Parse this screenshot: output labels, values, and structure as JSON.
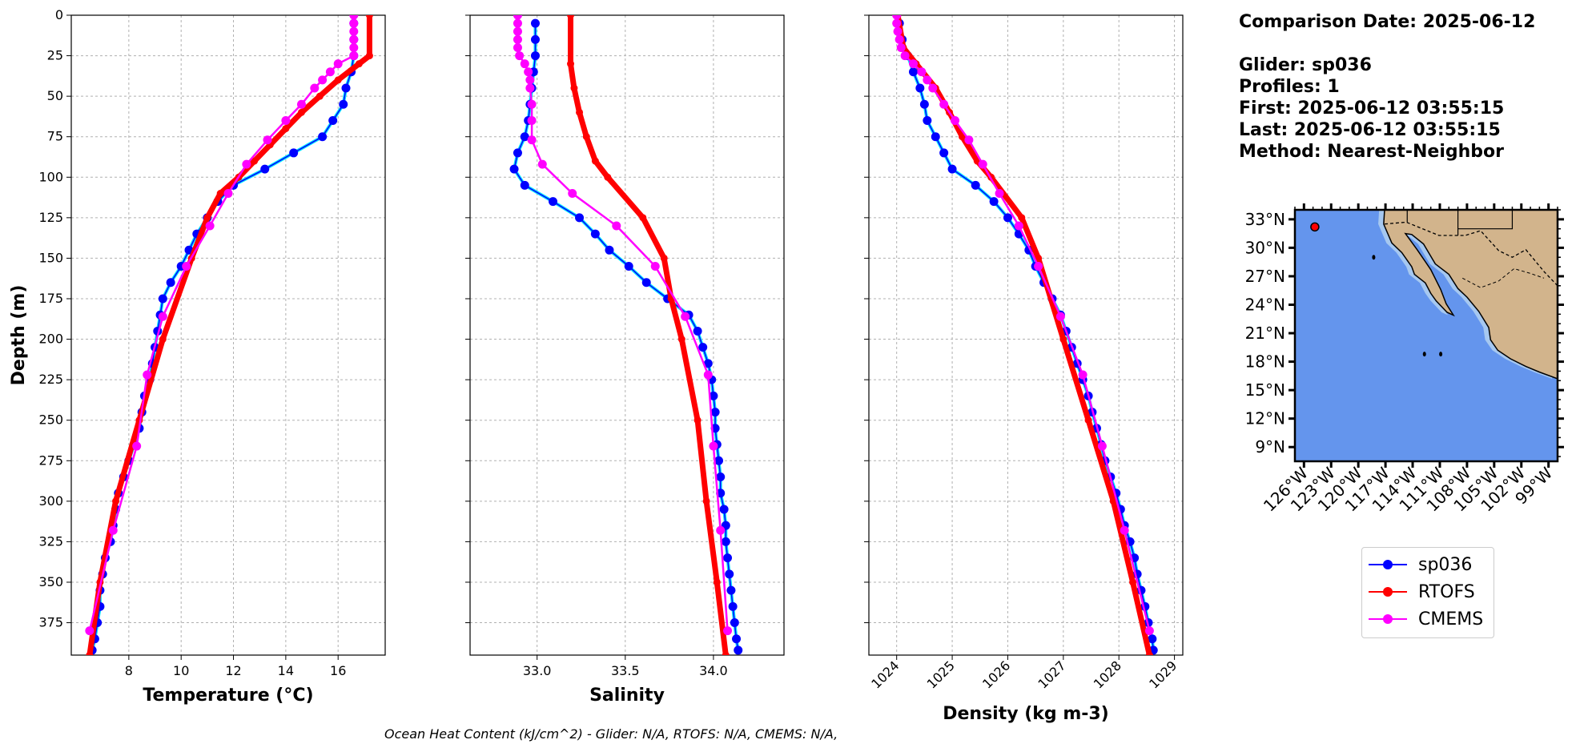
{
  "info": {
    "comparison_date": "Comparison Date: 2025-06-12",
    "glider": "Glider: sp036",
    "profiles": "Profiles: 1",
    "first": "First: 2025-06-12 03:55:15",
    "last": "Last: 2025-06-12 03:55:15",
    "method": "Method: Nearest-Neighbor"
  },
  "footer": "Ocean Heat Content (kJ/cm^2) - Glider: N/A,  RTOFS: N/A,  CMEMS: N/A,",
  "colors": {
    "glider": "#0000ff",
    "glider_line": "#00e5ff",
    "rtofs": "#ff0000",
    "cmems": "#ff00ff"
  },
  "legend": [
    {
      "label": "sp036",
      "color": "#0000ff"
    },
    {
      "label": "RTOFS",
      "color": "#ff0000"
    },
    {
      "label": "CMEMS",
      "color": "#ff00ff"
    }
  ],
  "chart_data": [
    {
      "type": "line",
      "xlabel": "Temperature (°C)",
      "ylabel": "Depth (m)",
      "xlim": [
        5.8,
        17.8
      ],
      "ylim": [
        395,
        0
      ],
      "xticks": [
        8,
        10,
        12,
        14,
        16
      ],
      "yticks": [
        0,
        25,
        50,
        75,
        100,
        125,
        150,
        175,
        200,
        225,
        250,
        275,
        300,
        325,
        350,
        375
      ],
      "grid": true,
      "series": [
        {
          "name": "sp036",
          "depth": [
            5,
            15,
            25,
            35,
            45,
            55,
            65,
            75,
            85,
            95,
            105,
            115,
            125,
            135,
            145,
            155,
            165,
            175,
            185,
            195,
            205,
            215,
            225,
            235,
            245,
            255,
            265,
            275,
            285,
            295,
            305,
            315,
            325,
            335,
            345,
            355,
            365,
            375,
            385,
            392
          ],
          "values": [
            16.6,
            16.6,
            16.6,
            16.5,
            16.3,
            16.2,
            15.8,
            15.4,
            14.3,
            13.2,
            12.0,
            11.4,
            11.0,
            10.6,
            10.3,
            10.0,
            9.6,
            9.3,
            9.2,
            9.1,
            9.0,
            8.9,
            8.8,
            8.6,
            8.5,
            8.4,
            8.2,
            8.0,
            7.8,
            7.6,
            7.5,
            7.4,
            7.3,
            7.1,
            7.0,
            6.9,
            6.9,
            6.8,
            6.7,
            6.6
          ]
        },
        {
          "name": "RTOFS",
          "depth": [
            0,
            25,
            30,
            40,
            50,
            60,
            70,
            80,
            90,
            100,
            110,
            125,
            150,
            200,
            250,
            300,
            350,
            395
          ],
          "values": [
            17.2,
            17.2,
            16.8,
            16.0,
            15.3,
            14.6,
            14.0,
            13.4,
            12.8,
            12.2,
            11.5,
            11.0,
            10.4,
            9.3,
            8.4,
            7.5,
            6.9,
            6.5
          ]
        },
        {
          "name": "CMEMS",
          "depth": [
            0,
            5,
            10,
            15,
            20,
            25,
            30,
            35,
            40,
            45,
            55,
            65,
            77,
            92,
            110,
            130,
            155,
            186,
            222,
            266,
            318,
            380
          ],
          "values": [
            16.6,
            16.6,
            16.6,
            16.6,
            16.6,
            16.6,
            16.0,
            15.7,
            15.4,
            15.1,
            14.6,
            14.0,
            13.3,
            12.5,
            11.8,
            11.1,
            10.2,
            9.3,
            8.7,
            8.3,
            7.4,
            6.5
          ]
        }
      ]
    },
    {
      "type": "line",
      "xlabel": "Salinity",
      "xlim": [
        32.62,
        34.4
      ],
      "ylim": [
        395,
        0
      ],
      "xticks": [
        33.0,
        33.5,
        34.0
      ],
      "xtick_labels": [
        "33.0",
        "33.5",
        "34.0"
      ],
      "grid": true,
      "series": [
        {
          "name": "sp036",
          "depth": [
            5,
            15,
            25,
            35,
            45,
            55,
            65,
            75,
            85,
            95,
            105,
            115,
            125,
            135,
            145,
            155,
            165,
            175,
            185,
            195,
            205,
            215,
            225,
            235,
            245,
            255,
            265,
            275,
            285,
            295,
            305,
            315,
            325,
            335,
            345,
            355,
            365,
            375,
            385,
            392
          ],
          "values": [
            32.99,
            32.99,
            32.99,
            32.98,
            32.97,
            32.96,
            32.95,
            32.93,
            32.89,
            32.87,
            32.93,
            33.09,
            33.24,
            33.33,
            33.41,
            33.52,
            33.62,
            33.74,
            33.86,
            33.91,
            33.94,
            33.97,
            33.99,
            34.0,
            34.01,
            34.01,
            34.02,
            34.03,
            34.04,
            34.04,
            34.06,
            34.07,
            34.07,
            34.08,
            34.09,
            34.1,
            34.11,
            34.12,
            34.13,
            34.14
          ]
        },
        {
          "name": "RTOFS",
          "depth": [
            0,
            30,
            45,
            60,
            75,
            90,
            100,
            125,
            150,
            175,
            200,
            250,
            300,
            350,
            395
          ],
          "values": [
            33.19,
            33.19,
            33.21,
            33.24,
            33.28,
            33.33,
            33.4,
            33.6,
            33.72,
            33.76,
            33.82,
            33.91,
            33.96,
            34.02,
            34.07
          ]
        },
        {
          "name": "CMEMS",
          "depth": [
            0,
            5,
            10,
            15,
            20,
            25,
            30,
            35,
            40,
            45,
            55,
            65,
            77,
            92,
            110,
            130,
            155,
            186,
            222,
            266,
            318,
            380
          ],
          "values": [
            32.89,
            32.89,
            32.89,
            32.89,
            32.89,
            32.9,
            32.93,
            32.95,
            32.96,
            32.96,
            32.97,
            32.97,
            32.97,
            33.03,
            33.2,
            33.45,
            33.67,
            33.84,
            33.97,
            34.0,
            34.04,
            34.08
          ]
        }
      ]
    },
    {
      "type": "line",
      "xlabel": "Density (kg m-3)",
      "xlim": [
        1023.5,
        1029.15
      ],
      "ylim": [
        395,
        0
      ],
      "xticks": [
        1024,
        1025,
        1026,
        1027,
        1028,
        1029
      ],
      "grid": true,
      "series": [
        {
          "name": "sp036",
          "depth": [
            5,
            15,
            25,
            35,
            45,
            55,
            65,
            75,
            85,
            95,
            105,
            115,
            125,
            135,
            145,
            155,
            165,
            175,
            185,
            195,
            205,
            215,
            225,
            235,
            245,
            255,
            265,
            275,
            285,
            295,
            305,
            315,
            325,
            335,
            345,
            355,
            365,
            375,
            385,
            392
          ],
          "values": [
            1024.05,
            1024.1,
            1024.2,
            1024.3,
            1024.42,
            1024.5,
            1024.55,
            1024.7,
            1024.85,
            1025.0,
            1025.42,
            1025.75,
            1026.0,
            1026.2,
            1026.38,
            1026.5,
            1026.65,
            1026.8,
            1026.95,
            1027.05,
            1027.15,
            1027.25,
            1027.35,
            1027.45,
            1027.52,
            1027.6,
            1027.68,
            1027.75,
            1027.85,
            1027.95,
            1028.03,
            1028.1,
            1028.2,
            1028.28,
            1028.33,
            1028.4,
            1028.47,
            1028.53,
            1028.6,
            1028.62
          ]
        },
        {
          "name": "RTOFS",
          "depth": [
            0,
            20,
            30,
            45,
            60,
            75,
            90,
            100,
            125,
            150,
            200,
            250,
            300,
            350,
            395
          ],
          "values": [
            1024.02,
            1024.12,
            1024.35,
            1024.7,
            1024.95,
            1025.18,
            1025.45,
            1025.7,
            1026.25,
            1026.55,
            1027.0,
            1027.45,
            1027.9,
            1028.25,
            1028.55
          ]
        },
        {
          "name": "CMEMS",
          "depth": [
            0,
            5,
            10,
            15,
            20,
            25,
            30,
            35,
            40,
            45,
            55,
            65,
            77,
            92,
            110,
            130,
            155,
            186,
            222,
            266,
            318,
            380
          ],
          "values": [
            1024.0,
            1024.0,
            1024.02,
            1024.05,
            1024.08,
            1024.15,
            1024.3,
            1024.45,
            1024.55,
            1024.65,
            1024.85,
            1025.05,
            1025.3,
            1025.55,
            1025.85,
            1026.2,
            1026.55,
            1026.95,
            1027.35,
            1027.7,
            1028.1,
            1028.55
          ]
        }
      ]
    },
    {
      "type": "map",
      "lat_ticks": [
        "33°N",
        "30°N",
        "27°N",
        "24°N",
        "21°N",
        "18°N",
        "15°N",
        "12°N",
        "9°N"
      ],
      "lon_ticks": [
        "126°W",
        "123°W",
        "120°W",
        "117°W",
        "114°W",
        "111°W",
        "108°W",
        "105°W",
        "102°W",
        "99°W"
      ],
      "lat_range": [
        7.5,
        34.0
      ],
      "lon_range": [
        -127.0,
        -98.0
      ],
      "marker": {
        "lat": 32.2,
        "lon": -124.8
      }
    }
  ]
}
